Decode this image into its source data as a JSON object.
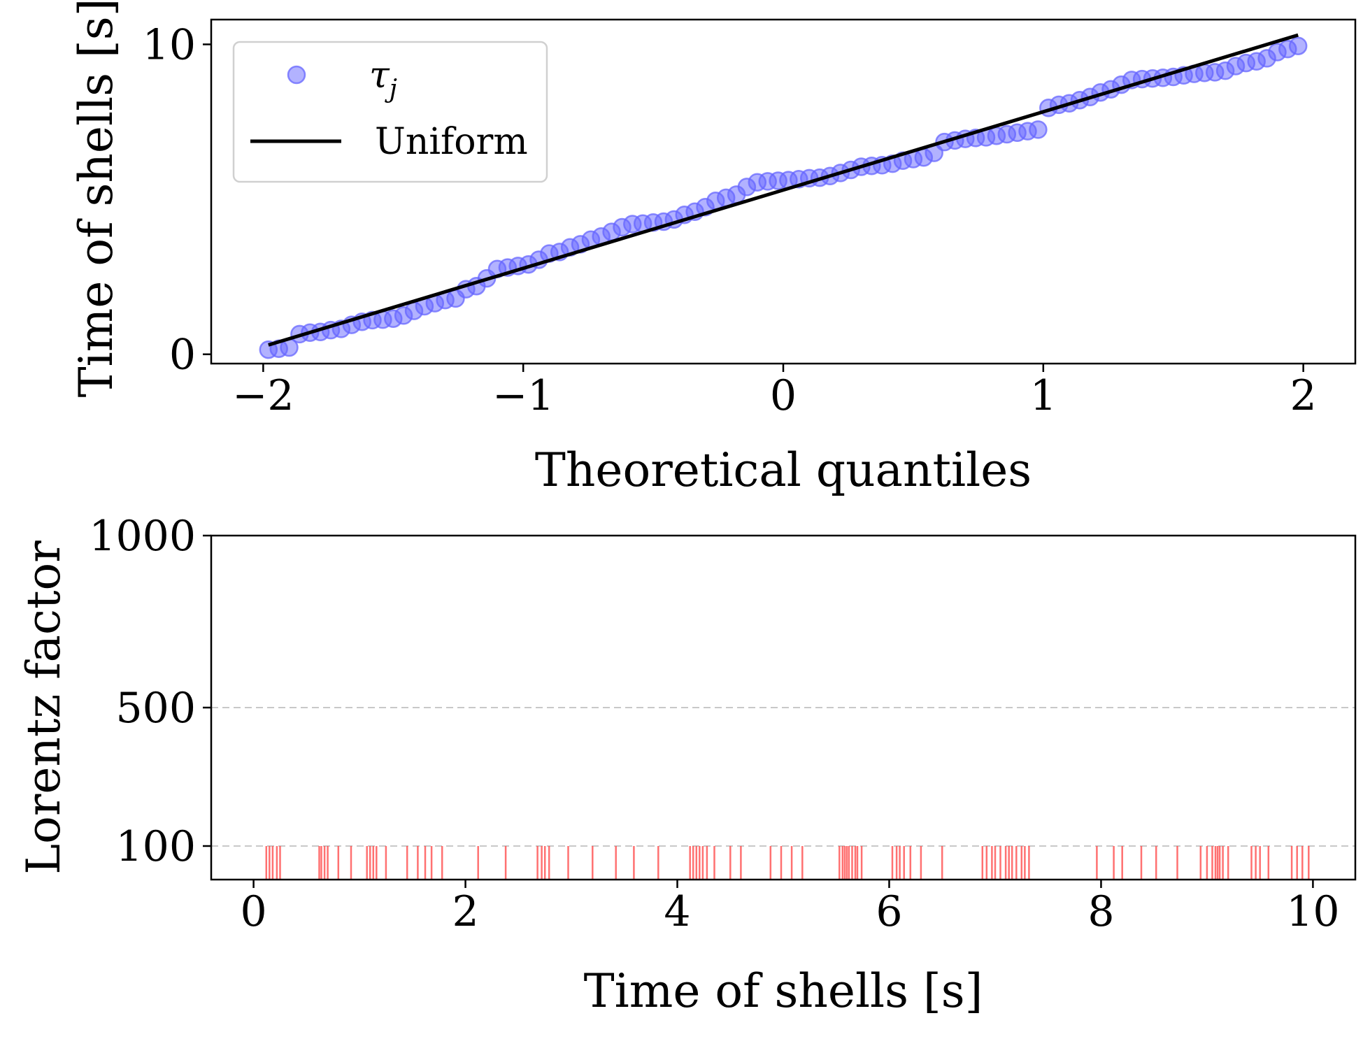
{
  "colors": {
    "points": "#6666ff",
    "fit_line": "#000000",
    "shell_lines": "#ff4d4d",
    "grid": "#c8c8c8"
  },
  "chart_data": [
    {
      "type": "scatter",
      "title": "",
      "xlabel": "Theoretical quantiles",
      "ylabel": "Time of shells [s]",
      "xlim": [
        -2.2,
        2.2
      ],
      "ylim": [
        -0.3,
        10.8
      ],
      "xticks": [
        -2,
        -1,
        0,
        1,
        2
      ],
      "xtick_labels": [
        "−2",
        "−1",
        "0",
        "1",
        "2"
      ],
      "yticks": [
        0,
        10
      ],
      "ytick_labels": [
        "0",
        "10"
      ],
      "legend": {
        "position": "top-left",
        "entries": [
          {
            "label_main": "τ",
            "label_sub": "j",
            "marker": "circle"
          },
          {
            "label": "Uniform",
            "marker": "line"
          }
        ]
      },
      "series": [
        {
          "name": "τj",
          "kind": "points",
          "x": [
            -1.98,
            -1.94,
            -1.9,
            -1.86,
            -1.82,
            -1.78,
            -1.74,
            -1.7,
            -1.66,
            -1.62,
            -1.58,
            -1.54,
            -1.5,
            -1.46,
            -1.42,
            -1.38,
            -1.34,
            -1.3,
            -1.26,
            -1.22,
            -1.18,
            -1.14,
            -1.1,
            -1.06,
            -1.02,
            -0.98,
            -0.94,
            -0.9,
            -0.86,
            -0.82,
            -0.78,
            -0.74,
            -0.7,
            -0.66,
            -0.62,
            -0.58,
            -0.54,
            -0.5,
            -0.46,
            -0.42,
            -0.38,
            -0.34,
            -0.3,
            -0.26,
            -0.22,
            -0.18,
            -0.14,
            -0.1,
            -0.06,
            -0.02,
            0.02,
            0.06,
            0.1,
            0.14,
            0.18,
            0.22,
            0.26,
            0.3,
            0.34,
            0.38,
            0.42,
            0.46,
            0.5,
            0.54,
            0.58,
            0.62,
            0.66,
            0.7,
            0.74,
            0.78,
            0.82,
            0.86,
            0.9,
            0.94,
            0.98,
            1.02,
            1.06,
            1.1,
            1.14,
            1.18,
            1.22,
            1.26,
            1.3,
            1.34,
            1.38,
            1.42,
            1.46,
            1.5,
            1.54,
            1.58,
            1.62,
            1.66,
            1.7,
            1.74,
            1.78,
            1.82,
            1.86,
            1.9,
            1.94,
            1.98
          ],
          "y": [
            0.15,
            0.18,
            0.22,
            0.65,
            0.7,
            0.72,
            0.78,
            0.82,
            0.95,
            1.05,
            1.1,
            1.12,
            1.15,
            1.25,
            1.4,
            1.55,
            1.65,
            1.75,
            1.8,
            2.1,
            2.2,
            2.45,
            2.75,
            2.8,
            2.85,
            2.9,
            3.05,
            3.25,
            3.3,
            3.45,
            3.55,
            3.7,
            3.8,
            3.95,
            4.1,
            4.2,
            4.22,
            4.25,
            4.28,
            4.35,
            4.5,
            4.6,
            4.75,
            4.95,
            5.05,
            5.15,
            5.4,
            5.55,
            5.58,
            5.6,
            5.62,
            5.65,
            5.68,
            5.7,
            5.75,
            5.85,
            5.95,
            6.05,
            6.08,
            6.1,
            6.15,
            6.25,
            6.3,
            6.35,
            6.5,
            6.85,
            6.9,
            6.95,
            6.98,
            7.0,
            7.05,
            7.1,
            7.15,
            7.2,
            7.25,
            7.95,
            8.05,
            8.1,
            8.2,
            8.3,
            8.45,
            8.55,
            8.7,
            8.85,
            8.88,
            8.9,
            8.92,
            8.95,
            9.0,
            9.05,
            9.08,
            9.1,
            9.15,
            9.3,
            9.4,
            9.45,
            9.55,
            9.75,
            9.85,
            9.95
          ]
        },
        {
          "name": "Uniform",
          "kind": "line",
          "x": [
            -1.98,
            1.98
          ],
          "y": [
            0.3,
            10.3
          ]
        }
      ]
    },
    {
      "type": "event",
      "title": "",
      "xlabel": "Time of shells [s]",
      "ylabel": "Lorentz factor",
      "xlim": [
        -0.4,
        10.4
      ],
      "ylim": [
        0,
        1000
      ],
      "yscale": "piecewise",
      "xticks": [
        0,
        2,
        4,
        6,
        8,
        10
      ],
      "xtick_labels": [
        "0",
        "2",
        "4",
        "6",
        "8",
        "10"
      ],
      "yticks": [
        100,
        500,
        1000
      ],
      "ytick_labels": [
        "100",
        "500",
        "1000"
      ],
      "grid": {
        "horizontal_at": [
          100,
          500
        ],
        "style": "dashed"
      },
      "series": [
        {
          "name": "shells",
          "lorentz_factor": 100,
          "times": [
            0.12,
            0.15,
            0.18,
            0.22,
            0.25,
            0.62,
            0.64,
            0.67,
            0.7,
            0.8,
            0.92,
            1.07,
            1.1,
            1.13,
            1.16,
            1.25,
            1.45,
            1.55,
            1.62,
            1.68,
            1.78,
            2.12,
            2.38,
            2.68,
            2.72,
            2.75,
            2.79,
            2.97,
            3.2,
            3.42,
            3.59,
            3.82,
            4.12,
            4.15,
            4.18,
            4.21,
            4.24,
            4.28,
            4.35,
            4.5,
            4.6,
            4.88,
            4.98,
            5.08,
            5.18,
            5.53,
            5.56,
            5.58,
            5.6,
            5.62,
            5.65,
            5.68,
            5.7,
            5.74,
            6.03,
            6.07,
            6.1,
            6.14,
            6.2,
            6.3,
            6.5,
            6.88,
            6.92,
            6.97,
            7.0,
            7.05,
            7.1,
            7.13,
            7.16,
            7.2,
            7.25,
            7.28,
            7.32,
            7.96,
            8.12,
            8.2,
            8.38,
            8.52,
            8.72,
            8.94,
            9.0,
            9.05,
            9.08,
            9.1,
            9.12,
            9.15,
            9.2,
            9.42,
            9.46,
            9.5,
            9.58,
            9.8,
            9.85,
            9.9,
            9.96
          ]
        }
      ]
    }
  ]
}
